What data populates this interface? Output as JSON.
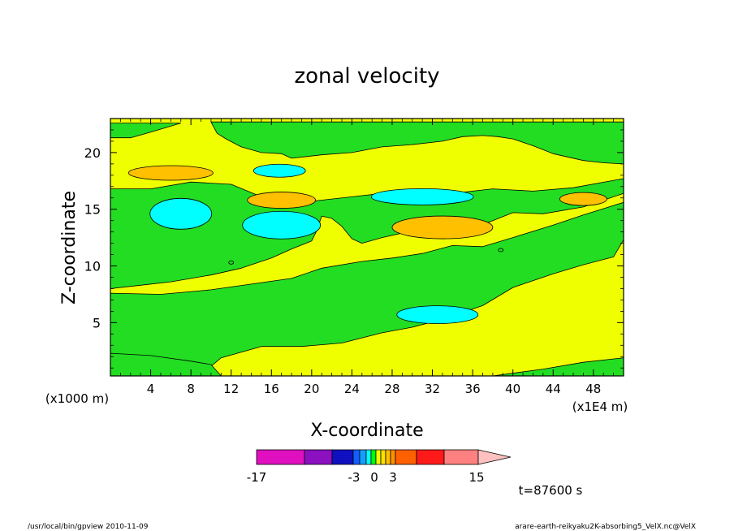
{
  "chart_data": {
    "type": "contour",
    "title": "zonal velocity",
    "xlabel": "X-coordinate",
    "ylabel": "Z-coordinate",
    "x_unit": "(x1E4 m)",
    "y_unit": "(x1000 m)",
    "xlim": [
      0,
      51
    ],
    "ylim": [
      0.3,
      23
    ],
    "x_ticks": [
      4,
      8,
      12,
      16,
      20,
      24,
      28,
      32,
      36,
      40,
      44,
      48
    ],
    "y_ticks": [
      5,
      10,
      15,
      20
    ],
    "colorbar": {
      "tick_labels": [
        "-17",
        "-3",
        "0",
        "3",
        "15"
      ],
      "levels": [
        -17,
        -12,
        -9,
        -6,
        -3,
        -2,
        -1,
        0,
        1,
        2,
        3,
        6,
        9,
        12,
        15
      ],
      "colors": [
        "#e010c0",
        "#8a10c0",
        "#1010c0",
        "#1060ff",
        "#10a0ff",
        "#00ffff",
        "#00ff00",
        "#f0ff00",
        "#ffe000",
        "#ffc000",
        "#ff9000",
        "#ff6000",
        "#ff1a1a",
        "#ff8080",
        "#ffc0c0"
      ]
    },
    "colors": {
      "positive_small": "#f0ff00",
      "negative_small": "#22dd22",
      "negative_mid": "#00ffff",
      "positive_mid": "#ffc000",
      "background": "#ffffff"
    },
    "regions": [
      {
        "type": "base",
        "value_range": "0 to 1",
        "color": "#f0ff00"
      },
      {
        "type": "band",
        "value_range": "-1 to 0",
        "color": "#22dd22",
        "outline": [
          [
            0,
            16.8
          ],
          [
            4,
            16.8
          ],
          [
            8,
            17.4
          ],
          [
            12,
            17.2
          ],
          [
            15,
            16.1
          ],
          [
            20,
            15.7
          ],
          [
            24,
            16.1
          ],
          [
            28,
            16.5
          ],
          [
            34,
            16.4
          ],
          [
            38,
            16.8
          ],
          [
            42,
            16.6
          ],
          [
            46,
            16.9
          ],
          [
            51,
            17.7
          ],
          [
            51,
            16.4
          ],
          [
            47,
            15.2
          ],
          [
            43,
            14.6
          ],
          [
            40,
            14.7
          ],
          [
            38,
            14.0
          ],
          [
            36,
            13.4
          ],
          [
            34,
            12.6
          ],
          [
            32,
            12.9
          ],
          [
            30,
            13.1
          ],
          [
            27,
            12.5
          ],
          [
            25,
            12.0
          ],
          [
            24,
            12.4
          ],
          [
            23,
            13.5
          ],
          [
            22,
            14.2
          ],
          [
            21,
            14.4
          ],
          [
            20.5,
            13.1
          ],
          [
            20,
            12.2
          ],
          [
            18,
            11.5
          ],
          [
            16,
            10.7
          ],
          [
            13,
            9.8
          ],
          [
            10,
            9.2
          ],
          [
            6,
            8.6
          ],
          [
            3,
            8.3
          ],
          [
            0,
            8.0
          ]
        ]
      },
      {
        "type": "band",
        "value_range": "-1 to 0",
        "color": "#22dd22",
        "outline": [
          [
            0,
            21.3
          ],
          [
            2,
            21.3
          ],
          [
            4,
            21.8
          ],
          [
            7,
            22.6
          ],
          [
            0,
            22.6
          ]
        ]
      },
      {
        "type": "band",
        "value_range": "-1 to 0",
        "color": "#22dd22",
        "outline": [
          [
            10,
            22.7
          ],
          [
            10.6,
            21.7
          ],
          [
            11.5,
            21.2
          ],
          [
            13,
            20.5
          ],
          [
            15,
            20.0
          ],
          [
            17,
            19.9
          ],
          [
            18,
            19.5
          ],
          [
            21,
            19.8
          ],
          [
            24,
            20.0
          ],
          [
            27,
            20.5
          ],
          [
            30,
            20.7
          ],
          [
            33,
            21.0
          ],
          [
            35,
            21.4
          ],
          [
            37,
            21.5
          ],
          [
            38.5,
            21.4
          ],
          [
            40,
            21.2
          ],
          [
            42,
            20.6
          ],
          [
            44,
            19.9
          ],
          [
            47,
            19.3
          ],
          [
            49,
            19.1
          ],
          [
            51,
            19.0
          ],
          [
            51,
            22.7
          ]
        ]
      },
      {
        "type": "band",
        "value_range": "-1 to 0",
        "color": "#22dd22",
        "outline": [
          [
            0,
            7.6
          ],
          [
            5,
            7.5
          ],
          [
            10,
            7.9
          ],
          [
            14,
            8.4
          ],
          [
            18,
            8.9
          ],
          [
            21,
            9.8
          ],
          [
            25,
            10.4
          ],
          [
            28,
            10.7
          ],
          [
            31,
            11.1
          ],
          [
            34,
            11.8
          ],
          [
            37,
            11.7
          ],
          [
            40,
            12.5
          ],
          [
            44,
            13.6
          ],
          [
            47,
            14.5
          ],
          [
            51,
            15.6
          ],
          [
            51,
            12.3
          ],
          [
            50,
            10.8
          ],
          [
            47,
            10.1
          ],
          [
            44,
            9.3
          ],
          [
            40,
            8.1
          ],
          [
            37,
            6.5
          ],
          [
            33,
            5.3
          ],
          [
            30,
            4.6
          ],
          [
            27,
            4.1
          ],
          [
            23,
            3.2
          ],
          [
            19,
            2.9
          ],
          [
            15,
            2.9
          ],
          [
            11,
            1.9
          ],
          [
            9,
            0.4
          ],
          [
            0,
            0.4
          ]
        ]
      },
      {
        "type": "band",
        "value_range": "-1 to 0",
        "color": "#22dd22",
        "outline": [
          [
            0,
            2.3
          ],
          [
            4,
            2.1
          ],
          [
            8,
            1.6
          ],
          [
            10,
            1.3
          ],
          [
            11,
            0.3
          ],
          [
            0,
            0.3
          ]
        ]
      },
      {
        "type": "band",
        "value_range": "-1 to 0",
        "color": "#22dd22",
        "outline": [
          [
            38,
            0.3
          ],
          [
            43,
            0.9
          ],
          [
            47,
            1.5
          ],
          [
            51,
            1.9
          ],
          [
            51,
            0.3
          ]
        ]
      },
      {
        "type": "blob",
        "value_range": "-3 to -1",
        "color": "#00ffff",
        "center": [
          7,
          14.6
        ]
      },
      {
        "type": "blob",
        "value_range": "-3 to -1",
        "color": "#00ffff",
        "center": [
          17,
          13.6
        ]
      },
      {
        "type": "blob",
        "value_range": "-3 to -1",
        "color": "#00ffff",
        "center": [
          16.8,
          18.4
        ]
      },
      {
        "type": "blob",
        "value_range": "-3 to -1",
        "color": "#00ffff",
        "center": [
          31,
          16.1
        ]
      },
      {
        "type": "blob",
        "value_range": "-3 to -1",
        "color": "#00ffff",
        "center": [
          32.5,
          5.7
        ]
      },
      {
        "type": "blob",
        "value_range": "1 to 2",
        "color": "#ffc000",
        "center": [
          6,
          18.2
        ]
      },
      {
        "type": "blob",
        "value_range": "1 to 2",
        "color": "#ffc000",
        "center": [
          17,
          15.8
        ]
      },
      {
        "type": "blob",
        "value_range": "1 to 2",
        "color": "#ffc000",
        "center": [
          33,
          13.4
        ]
      },
      {
        "type": "blob",
        "value_range": "1 to 2",
        "color": "#ffc000",
        "center": [
          47,
          15.9
        ]
      }
    ],
    "time_label": "t=87600 s"
  },
  "footer": {
    "left": "/usr/local/bin/gpview  2010-11-09",
    "right": "arare-earth-reikyaku2K-absorbing5_VelX.nc@VelX"
  }
}
